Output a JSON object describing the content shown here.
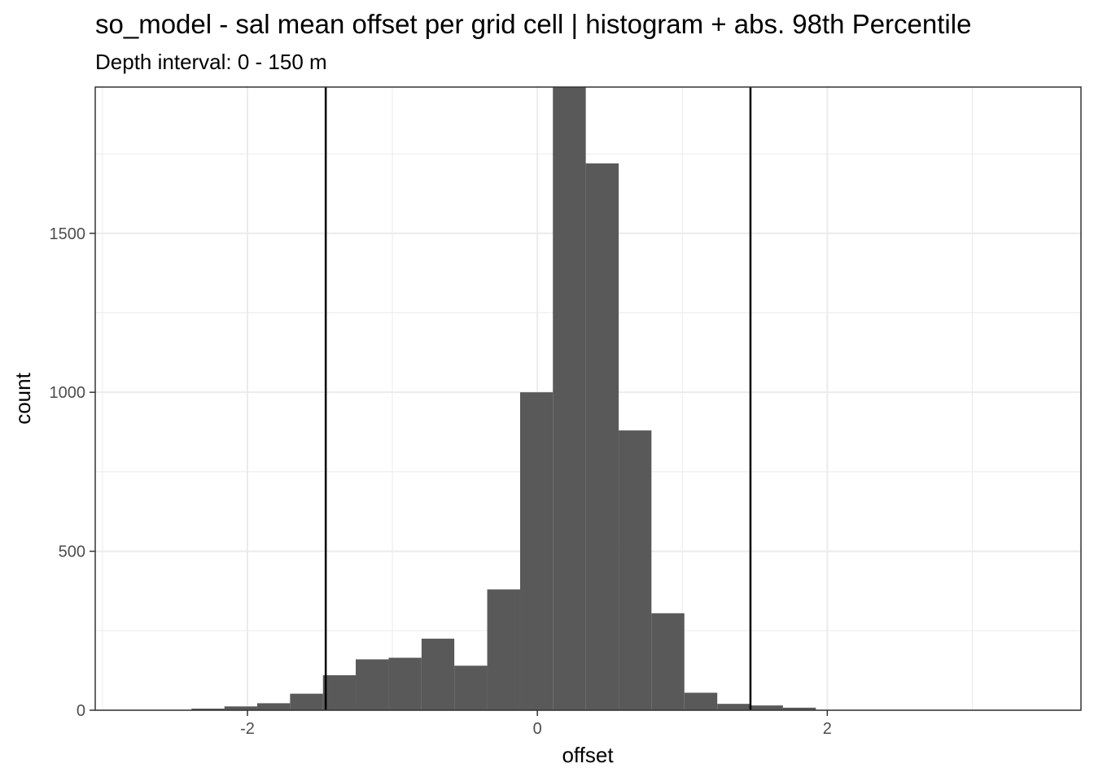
{
  "chart_data": {
    "type": "bar",
    "title": "so_model  -  sal mean offset per grid cell | histogram + abs. 98th Percentile",
    "subtitle": "Depth interval: 0 - 150 m",
    "xlabel": "offset",
    "ylabel": "count",
    "xlim": [
      -3.05,
      3.75
    ],
    "ylim": [
      0,
      1960
    ],
    "x_ticks": [
      -2,
      0,
      2
    ],
    "x_tick_labels": [
      "-2",
      "0",
      "2"
    ],
    "y_ticks": [
      0,
      500,
      1000,
      1500
    ],
    "y_tick_labels": [
      "0",
      "500",
      "1000",
      "1500"
    ],
    "grid": true,
    "bin_width": 0.2267,
    "bins": [
      {
        "x0": -2.386,
        "x1": -2.159,
        "count": 5
      },
      {
        "x0": -2.159,
        "x1": -1.933,
        "count": 12
      },
      {
        "x0": -1.933,
        "x1": -1.706,
        "count": 22
      },
      {
        "x0": -1.706,
        "x1": -1.479,
        "count": 52
      },
      {
        "x0": -1.479,
        "x1": -1.253,
        "count": 110
      },
      {
        "x0": -1.253,
        "x1": -1.026,
        "count": 160
      },
      {
        "x0": -1.026,
        "x1": -0.799,
        "count": 165
      },
      {
        "x0": -0.799,
        "x1": -0.573,
        "count": 225
      },
      {
        "x0": -0.573,
        "x1": -0.346,
        "count": 140
      },
      {
        "x0": -0.346,
        "x1": -0.119,
        "count": 380
      },
      {
        "x0": -0.119,
        "x1": 0.107,
        "count": 1000
      },
      {
        "x0": 0.107,
        "x1": 0.334,
        "count": 1960
      },
      {
        "x0": 0.334,
        "x1": 0.561,
        "count": 1720
      },
      {
        "x0": 0.561,
        "x1": 0.787,
        "count": 880
      },
      {
        "x0": 0.787,
        "x1": 1.014,
        "count": 305
      },
      {
        "x0": 1.014,
        "x1": 1.241,
        "count": 55
      },
      {
        "x0": 1.241,
        "x1": 1.467,
        "count": 20
      },
      {
        "x0": 1.467,
        "x1": 1.694,
        "count": 15
      },
      {
        "x0": 1.694,
        "x1": 1.921,
        "count": 8
      }
    ],
    "percentile_lines": [
      -1.46,
      1.47
    ],
    "bar_color": "#595959",
    "line_color": "#000000"
  }
}
